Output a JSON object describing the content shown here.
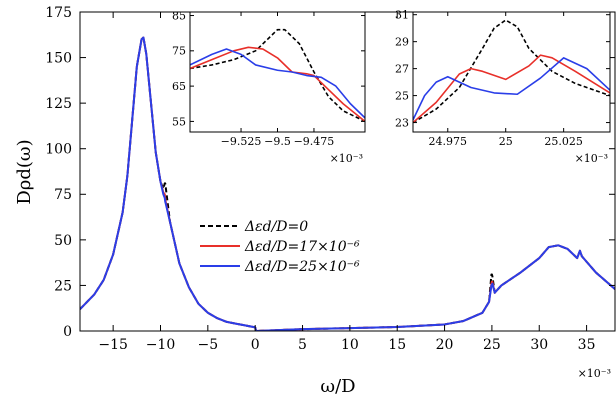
{
  "chart_data": {
    "main": {
      "type": "line",
      "xlabel": "ω/D",
      "ylabel": "Dρd(ω)",
      "x_multiplier": "×10⁻³",
      "xlim": [
        -18.5,
        38
      ],
      "ylim": [
        0,
        175
      ],
      "xticks": [
        -15,
        -10,
        -5,
        0,
        5,
        10,
        15,
        20,
        25,
        30,
        35
      ],
      "xtick_labels": [
        "−15",
        "−10",
        "−5",
        "0",
        "5",
        "10",
        "15",
        "20",
        "25",
        "30",
        "35"
      ],
      "yticks": [
        0,
        25,
        50,
        75,
        100,
        125,
        150,
        175
      ],
      "ytick_labels": [
        "0",
        "25",
        "50",
        "75",
        "100",
        "125",
        "150",
        "175"
      ],
      "series": [
        {
          "name": "Δεd/D=0",
          "color": "#000000",
          "dash": "dashed",
          "x": [
            -18.5,
            -17,
            -16,
            -15,
            -14,
            -13.5,
            -13,
            -12.5,
            -12,
            -11.8,
            -11.5,
            -11,
            -10.5,
            -10,
            -9.7,
            -9.55,
            -9.5,
            -9.45,
            -9,
            -8,
            -7,
            -6,
            -5,
            -4,
            -3,
            -2,
            -1,
            0,
            0.1,
            5,
            10,
            15,
            20,
            22,
            24,
            24.7,
            24.95,
            25,
            25.05,
            25.3,
            26,
            28,
            30,
            31,
            32,
            33,
            34,
            34.3,
            34.5,
            35,
            36,
            38
          ],
          "y": [
            12,
            20,
            28,
            42,
            65,
            85,
            115,
            145,
            160,
            161,
            152,
            125,
            98,
            82,
            78,
            81,
            81,
            79,
            60,
            37,
            24,
            15,
            10,
            7,
            5,
            4,
            3,
            2,
            0,
            1,
            1.6,
            2.2,
            3.6,
            5.5,
            10,
            16,
            31,
            31,
            30,
            21,
            25,
            32,
            40,
            46,
            47,
            45,
            40,
            44,
            41,
            38,
            32,
            23
          ]
        },
        {
          "name": "Δεd/D=17×10⁻⁶",
          "color": "#e8302a",
          "dash": "solid",
          "x": [
            -18.5,
            -17,
            -16,
            -15,
            -14,
            -13.5,
            -13,
            -12.5,
            -12,
            -11.8,
            -11.5,
            -11,
            -10.5,
            -10,
            -9.7,
            -9.55,
            -9.5,
            -9.45,
            -9,
            -8,
            -7,
            -6,
            -5,
            -4,
            -3,
            -2,
            -1,
            0,
            0.1,
            5,
            10,
            15,
            20,
            22,
            24,
            24.7,
            24.95,
            25,
            25.05,
            25.3,
            26,
            28,
            30,
            31,
            32,
            33,
            34,
            34.3,
            34.5,
            35,
            36,
            38
          ],
          "y": [
            12,
            20,
            28,
            42,
            65,
            85,
            115,
            145,
            160,
            161,
            152,
            125,
            98,
            82,
            76,
            75,
            73,
            71,
            60,
            37,
            24,
            15,
            10,
            7,
            5,
            4,
            3,
            2,
            0,
            1,
            1.6,
            2.2,
            3.6,
            5.5,
            10,
            16,
            26,
            27,
            27,
            21,
            25,
            32,
            40,
            46,
            47,
            45,
            40,
            44,
            41,
            38,
            32,
            23
          ]
        },
        {
          "name": "Δεd/D=25×10⁻⁶",
          "color": "#2a3ee8",
          "dash": "solid",
          "x": [
            -18.5,
            -17,
            -16,
            -15,
            -14,
            -13.5,
            -13,
            -12.5,
            -12,
            -11.8,
            -11.5,
            -11,
            -10.5,
            -10,
            -9.7,
            -9.55,
            -9.5,
            -9.45,
            -9,
            -8,
            -7,
            -6,
            -5,
            -4,
            -3,
            -2,
            -1,
            0,
            0.1,
            5,
            10,
            15,
            20,
            22,
            24,
            24.7,
            24.95,
            25,
            25.05,
            25.3,
            26,
            28,
            30,
            31,
            32,
            33,
            34,
            34.3,
            34.5,
            35,
            36,
            38
          ],
          "y": [
            12,
            20,
            28,
            42,
            65,
            85,
            115,
            145,
            160,
            161,
            152,
            125,
            98,
            82,
            75,
            73,
            71,
            70,
            60,
            37,
            24,
            15,
            10,
            7,
            5,
            4,
            3,
            2,
            0,
            1,
            1.6,
            2.2,
            3.6,
            5.5,
            10,
            16,
            25,
            25,
            26,
            21,
            25,
            32,
            40,
            46,
            47,
            45,
            40,
            44,
            41,
            38,
            32,
            23
          ]
        }
      ],
      "legend_position": "center",
      "grid": false
    },
    "insets": [
      {
        "type": "line",
        "xlim": [
          -9.56,
          -9.44
        ],
        "ylim": [
          52,
          86
        ],
        "xticks": [
          -9.525,
          -9.5,
          -9.475
        ],
        "xtick_labels": [
          "−9.525",
          "−9.5",
          "−9.475"
        ],
        "yticks": [
          55,
          65,
          75,
          85
        ],
        "ytick_labels": [
          "55",
          "65",
          "75",
          "85"
        ],
        "x_multiplier": "×10⁻³",
        "position": "top-left",
        "series": [
          {
            "name": "Δεd/D=0",
            "color": "#000000",
            "dash": "dashed",
            "x": [
              -9.56,
              -9.545,
              -9.53,
              -9.515,
              -9.505,
              -9.5,
              -9.495,
              -9.485,
              -9.475,
              -9.465,
              -9.455,
              -9.44
            ],
            "y": [
              70,
              71,
              72.5,
              75,
              79,
              81,
              81,
              77,
              69,
              62,
              58,
              55
            ]
          },
          {
            "name": "Δεd/D=17×10⁻⁶",
            "color": "#e8302a",
            "dash": "solid",
            "x": [
              -9.56,
              -9.545,
              -9.53,
              -9.52,
              -9.51,
              -9.5,
              -9.49,
              -9.48,
              -9.475,
              -9.465,
              -9.455,
              -9.44
            ],
            "y": [
              70,
              72.5,
              75,
              76,
              75.5,
              73,
              69,
              68.5,
              68,
              64,
              60,
              55
            ]
          },
          {
            "name": "Δεd/D=25×10⁻⁶",
            "color": "#2a3ee8",
            "dash": "solid",
            "x": [
              -9.56,
              -9.545,
              -9.535,
              -9.525,
              -9.515,
              -9.5,
              -9.49,
              -9.48,
              -9.47,
              -9.46,
              -9.45,
              -9.44
            ],
            "y": [
              71,
              74,
              75.5,
              74,
              71,
              69.5,
              69,
              68,
              67.5,
              65,
              60,
              56
            ]
          }
        ]
      },
      {
        "type": "line",
        "xlim": [
          24.96,
          25.045
        ],
        "ylim": [
          22.3,
          31.2
        ],
        "xticks": [
          24.975,
          25,
          25.025
        ],
        "xtick_labels": [
          "24.975",
          "25",
          "25.025"
        ],
        "yticks": [
          23,
          25,
          27,
          29,
          31
        ],
        "ytick_labels": [
          "23",
          "25",
          "27",
          "29",
          "31"
        ],
        "x_multiplier": "×10⁻³",
        "position": "top-right",
        "series": [
          {
            "name": "Δεd/D=0",
            "color": "#000000",
            "dash": "dashed",
            "x": [
              24.96,
              24.97,
              24.98,
              24.99,
              24.995,
              25,
              25.005,
              25.01,
              25.02,
              25.03,
              25.045
            ],
            "y": [
              23,
              24,
              25.6,
              28.5,
              30,
              30.6,
              30.1,
              28.5,
              26.8,
              25.9,
              25
            ]
          },
          {
            "name": "Δεd/D=17×10⁻⁶",
            "color": "#e8302a",
            "dash": "solid",
            "x": [
              24.96,
              24.97,
              24.98,
              24.985,
              24.99,
              25,
              25.01,
              25.015,
              25.02,
              25.03,
              25.045
            ],
            "y": [
              23,
              24.5,
              26.6,
              27,
              26.8,
              26.2,
              27.2,
              28,
              27.8,
              26.8,
              25.2
            ]
          },
          {
            "name": "Δεd/D=25×10⁻⁶",
            "color": "#2a3ee8",
            "dash": "solid",
            "x": [
              24.96,
              24.965,
              24.97,
              24.975,
              24.985,
              24.995,
              25.005,
              25.015,
              25.025,
              25.035,
              25.045
            ],
            "y": [
              23.2,
              25,
              26,
              26.4,
              25.6,
              25.2,
              25.1,
              26.3,
              27.8,
              27,
              25.4
            ]
          }
        ]
      }
    ]
  }
}
